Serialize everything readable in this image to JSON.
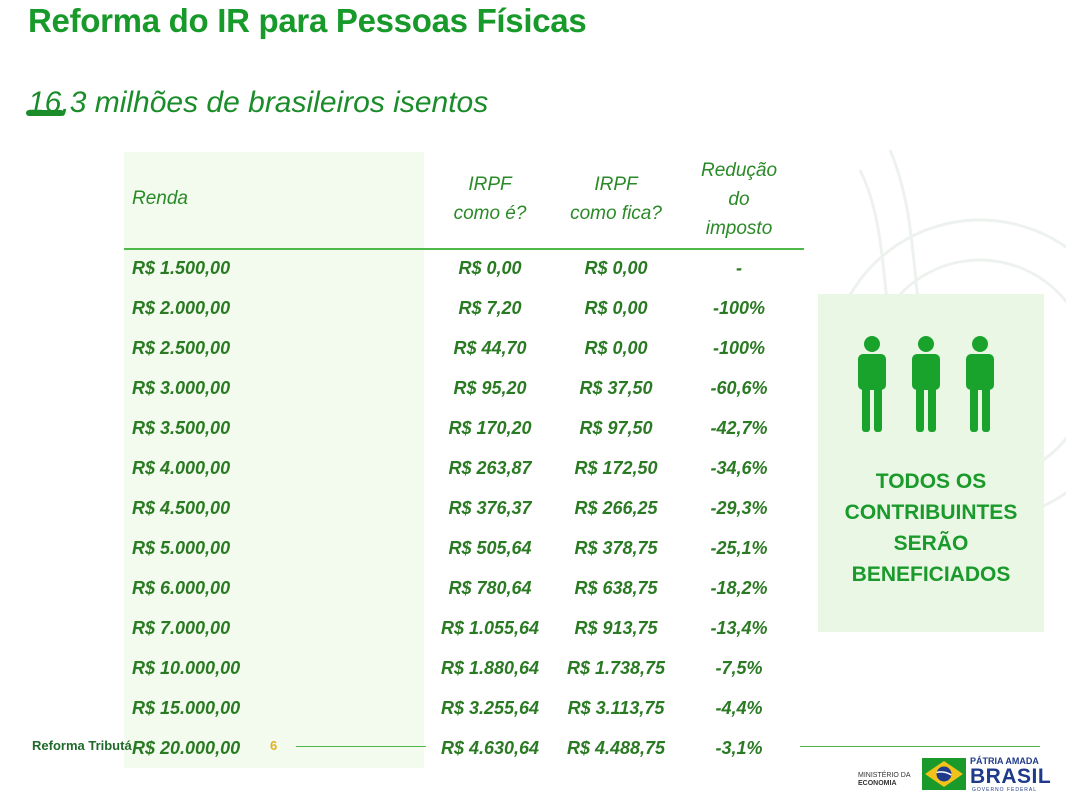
{
  "header": {
    "title": "Reforma do IR para Pessoas Físicas",
    "subtitle": "16,3 milhões de brasileiros isentos"
  },
  "table": {
    "columns": {
      "renda": "Renda",
      "irpf_atual": [
        "IRPF",
        "como é?"
      ],
      "irpf_novo": [
        "IRPF",
        "como fica?"
      ],
      "reducao": [
        "Redução",
        "do",
        "imposto"
      ]
    },
    "rows": [
      [
        "R$ 1.500,00",
        "R$ 0,00",
        "R$ 0,00",
        "-"
      ],
      [
        "R$ 2.000,00",
        "R$ 7,20",
        "R$ 0,00",
        "-100%"
      ],
      [
        "R$ 2.500,00",
        "R$ 44,70",
        "R$ 0,00",
        "-100%"
      ],
      [
        "R$ 3.000,00",
        "R$ 95,20",
        "R$ 37,50",
        "-60,6%"
      ],
      [
        "R$ 3.500,00",
        "R$ 170,20",
        "R$ 97,50",
        "-42,7%"
      ],
      [
        "R$ 4.000,00",
        "R$ 263,87",
        "R$ 172,50",
        "-34,6%"
      ],
      [
        "R$ 4.500,00",
        "R$ 376,37",
        "R$ 266,25",
        "-29,3%"
      ],
      [
        "R$ 5.000,00",
        "R$ 505,64",
        "R$ 378,75",
        "-25,1%"
      ],
      [
        "R$ 6.000,00",
        "R$ 780,64",
        "R$ 638,75",
        "-18,2%"
      ],
      [
        "R$ 7.000,00",
        "R$ 1.055,64",
        "R$ 913,75",
        "-13,4%"
      ],
      [
        "R$ 10.000,00",
        "R$ 1.880,64",
        "R$ 1.738,75",
        "-7,5%"
      ],
      [
        "R$ 15.000,00",
        "R$ 3.255,64",
        "R$ 3.113,75",
        "-4,4%"
      ],
      [
        "R$ 20.000,00",
        "R$ 4.630,64",
        "R$ 4.488,75",
        "-3,1%"
      ]
    ]
  },
  "benefit": {
    "icon": "three-people-icon",
    "lines": [
      "TODOS OS",
      "CONTRIBUINTES",
      "SERÃO",
      "BENEFICIADOS"
    ]
  },
  "footer": {
    "label": "Reforma Tributária",
    "page": "6",
    "ministry": [
      "MINISTÉRIO DA",
      "ECONOMIA"
    ],
    "logo": {
      "top": "PÁTRIA AMADA",
      "main": "BRASIL",
      "bottom": "GOVERNO FEDERAL"
    }
  },
  "colors": {
    "primary_green": "#179a2a",
    "text_green": "#2a7a23",
    "light_green_bg": "#f3fbee",
    "accent_yellow": "#e0b020",
    "logo_blue": "#1f3a8a"
  }
}
